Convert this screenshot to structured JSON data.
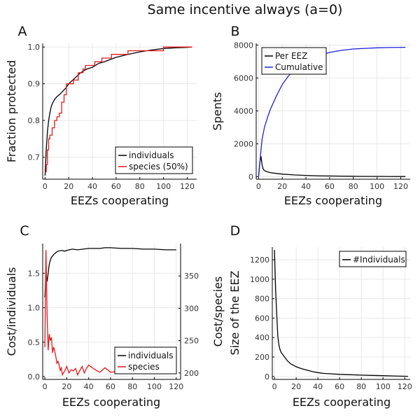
{
  "title": "Same incentive always (a=0)",
  "colors": {
    "black": "#000000",
    "red": "#e31a1c",
    "blue": "#1f1fe0"
  },
  "chart_data": [
    {
      "panel": "A",
      "type": "line",
      "xlabel": "EEZs cooperating",
      "ylabel": "Fraction protected",
      "xlim": [
        -2,
        128
      ],
      "ylim": [
        0.64,
        1.01
      ],
      "xticks": [
        0,
        20,
        40,
        60,
        80,
        100,
        120
      ],
      "yticks": [
        0.7,
        0.8,
        0.9,
        1.0
      ],
      "ytick_labels": [
        "0.7",
        "0.8",
        "0.9",
        "1.0"
      ],
      "legend": "bottom-right",
      "series": [
        {
          "name": "individuals",
          "color": "#000000",
          "step": false,
          "x": [
            0,
            1,
            2,
            3,
            4,
            5,
            6,
            8,
            10,
            12,
            15,
            18,
            20,
            25,
            30,
            35,
            40,
            45,
            50,
            60,
            70,
            80,
            90,
            100,
            110,
            118,
            124
          ],
          "y": [
            0.65,
            0.72,
            0.77,
            0.8,
            0.82,
            0.835,
            0.845,
            0.857,
            0.865,
            0.87,
            0.88,
            0.89,
            0.9,
            0.915,
            0.93,
            0.94,
            0.945,
            0.955,
            0.96,
            0.972,
            0.98,
            0.987,
            0.992,
            0.996,
            0.998,
            0.999,
            1.0
          ]
        },
        {
          "name": "species (50%)",
          "color": "#e31a1c",
          "step": true,
          "x": [
            0,
            1,
            2,
            3,
            4,
            6,
            8,
            10,
            12,
            14,
            16,
            18,
            20,
            22,
            24,
            26,
            28,
            30,
            32,
            34,
            38,
            42,
            44,
            48,
            52,
            56,
            60,
            62,
            66,
            70,
            74,
            78,
            82,
            90,
            100,
            110,
            124
          ],
          "y": [
            0.66,
            0.68,
            0.72,
            0.75,
            0.76,
            0.78,
            0.8,
            0.81,
            0.82,
            0.85,
            0.87,
            0.9,
            0.9,
            0.9,
            0.91,
            0.91,
            0.93,
            0.93,
            0.94,
            0.95,
            0.95,
            0.96,
            0.96,
            0.97,
            0.97,
            0.98,
            0.98,
            0.98,
            0.98,
            0.99,
            0.99,
            0.99,
            0.99,
            0.99,
            1.0,
            1.0,
            1.0
          ]
        }
      ]
    },
    {
      "panel": "B",
      "type": "line",
      "xlabel": "EEZs cooperating",
      "ylabel": "Spents",
      "xlim": [
        -2,
        128
      ],
      "ylim": [
        -150,
        8100
      ],
      "xticks": [
        0,
        20,
        40,
        60,
        80,
        100,
        120
      ],
      "yticks": [
        0,
        2000,
        4000,
        6000,
        8000
      ],
      "ytick_labels": [
        "0",
        "2000",
        "4000",
        "6000",
        "8000"
      ],
      "legend": "top-left",
      "series": [
        {
          "name": "Per EEZ",
          "color": "#000000",
          "step": false,
          "x": [
            0,
            1,
            2,
            3,
            4,
            5,
            6,
            8,
            10,
            15,
            20,
            30,
            40,
            50,
            60,
            70,
            80,
            90,
            100,
            110,
            124
          ],
          "y": [
            0,
            800,
            1250,
            700,
            450,
            380,
            330,
            290,
            250,
            200,
            160,
            110,
            80,
            60,
            45,
            35,
            28,
            22,
            18,
            15,
            12
          ]
        },
        {
          "name": "Cumulative",
          "color": "#1f1fe0",
          "step": false,
          "x": [
            0,
            1,
            2,
            3,
            5,
            8,
            10,
            15,
            20,
            25,
            30,
            35,
            40,
            50,
            60,
            70,
            80,
            90,
            100,
            110,
            124
          ],
          "y": [
            0,
            800,
            1600,
            2300,
            3000,
            3700,
            4100,
            4900,
            5600,
            6100,
            6500,
            6800,
            7050,
            7350,
            7550,
            7680,
            7760,
            7800,
            7830,
            7850,
            7860
          ]
        }
      ]
    },
    {
      "panel": "C",
      "type": "line",
      "xlabel": "EEZs cooperating",
      "ylabel": "Cost/individuals",
      "ylabel2": "Cost/species",
      "xlim": [
        -2,
        124
      ],
      "ylim": [
        -0.04,
        1.93
      ],
      "ylim2": [
        190,
        400
      ],
      "xticks": [
        0,
        20,
        40,
        60,
        80,
        100,
        120
      ],
      "yticks": [
        0.0,
        0.5,
        1.0,
        1.5
      ],
      "ytick_labels": [
        "0.0",
        "0.5",
        "1.0",
        "1.5"
      ],
      "yticks2": [
        200,
        250,
        300,
        350
      ],
      "ytick2_labels": [
        "200",
        "250",
        "300",
        "350"
      ],
      "legend": "bottom-right",
      "series": [
        {
          "name": "individuals",
          "color": "#000000",
          "axis": "left",
          "x": [
            0,
            1,
            2,
            3,
            4,
            5,
            6,
            8,
            10,
            12,
            15,
            18,
            20,
            25,
            30,
            35,
            40,
            45,
            50,
            55,
            60,
            70,
            80,
            90,
            100,
            110,
            120
          ],
          "y": [
            1.15,
            1.5,
            1.38,
            1.5,
            1.63,
            1.69,
            1.73,
            1.77,
            1.8,
            1.82,
            1.83,
            1.82,
            1.83,
            1.85,
            1.84,
            1.85,
            1.86,
            1.86,
            1.86,
            1.87,
            1.87,
            1.86,
            1.86,
            1.85,
            1.85,
            1.84,
            1.84
          ]
        },
        {
          "name": "species",
          "color": "#e31a1c",
          "axis": "right",
          "x": [
            0,
            1,
            2,
            3,
            4,
            5,
            6,
            7,
            8,
            9,
            10,
            11,
            12,
            13,
            14,
            15,
            16,
            18,
            20,
            22,
            24,
            26,
            28,
            30,
            32,
            34,
            36,
            38,
            40,
            45,
            50,
            55,
            60,
            70,
            80,
            90,
            100,
            110,
            120
          ],
          "y": [
            240,
            390,
            290,
            235,
            260,
            250,
            255,
            231,
            240,
            234,
            225,
            215,
            218,
            212,
            204,
            208,
            197,
            203,
            210,
            200,
            205,
            203,
            207,
            197,
            204,
            210,
            200,
            207,
            212,
            206,
            201,
            208,
            201,
            203,
            204,
            201,
            202,
            202,
            202
          ]
        }
      ]
    },
    {
      "panel": "D",
      "type": "line",
      "xlabel": "EEZs cooperating",
      "ylabel": "Size of the EEZ",
      "xlim": [
        -2,
        125
      ],
      "ylim": [
        -30,
        1330
      ],
      "xticks": [
        0,
        20,
        40,
        60,
        80,
        100,
        120
      ],
      "yticks": [
        0,
        200,
        400,
        600,
        800,
        1000,
        1200
      ],
      "ytick_labels": [
        "0",
        "200",
        "400",
        "600",
        "800",
        "1000",
        "1200"
      ],
      "legend": "top-right",
      "series": [
        {
          "name": "#Individuals",
          "color": "#000000",
          "x": [
            0,
            1,
            2,
            3,
            4,
            5,
            6,
            8,
            10,
            12,
            15,
            20,
            25,
            30,
            35,
            40,
            45,
            50,
            60,
            70,
            80,
            90,
            100,
            110,
            123
          ],
          "y": [
            1300,
            900,
            660,
            420,
            330,
            280,
            250,
            220,
            190,
            160,
            130,
            100,
            80,
            65,
            50,
            40,
            32,
            28,
            22,
            18,
            14,
            11,
            8,
            5,
            2
          ]
        }
      ]
    }
  ]
}
